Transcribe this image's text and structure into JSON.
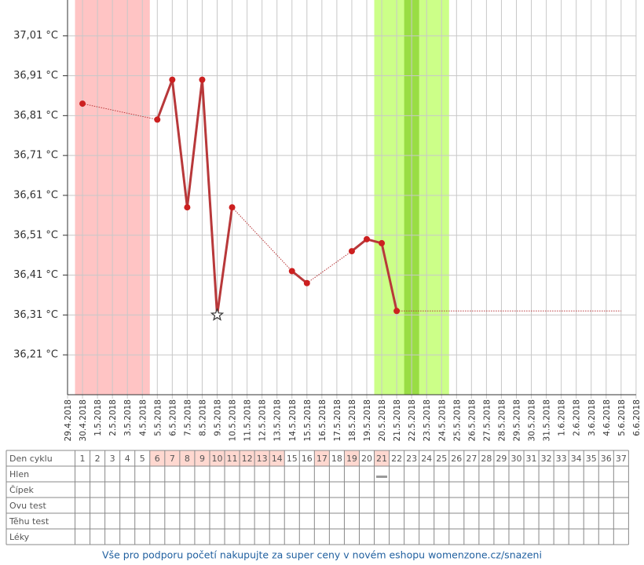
{
  "chart_data": {
    "type": "line",
    "x": [
      "29.4.2018",
      "30.4.2018",
      "1.5.2018",
      "2.5.2018",
      "3.5.2018",
      "4.5.2018",
      "5.5.2018",
      "6.5.2018",
      "7.5.2018",
      "8.5.2018",
      "9.5.2018",
      "10.5.2018",
      "11.5.2018",
      "12.5.2018",
      "13.5.2018",
      "14.5.2018",
      "15.5.2018",
      "16.5.2018",
      "17.5.2018",
      "18.5.2018",
      "19.5.2018",
      "20.5.2018",
      "21.5.2018",
      "22.5.2018",
      "23.5.2018",
      "24.5.2018",
      "25.5.2018",
      "26.5.2018",
      "27.5.2018",
      "28.5.2018",
      "29.5.2018",
      "30.5.2018",
      "31.5.2018",
      "1.6.2018",
      "2.6.2018",
      "3.6.2018",
      "4.6.2018",
      "5.6.2018",
      "6.6.2018"
    ],
    "series": [
      {
        "color": "#b8383a",
        "point_color": "#cc2020",
        "values": [
          null,
          36.84,
          null,
          null,
          null,
          null,
          36.8,
          36.9,
          36.58,
          36.9,
          36.31,
          36.58,
          null,
          null,
          null,
          36.42,
          36.39,
          null,
          null,
          36.47,
          36.5,
          36.49,
          36.32,
          null,
          null,
          null,
          null,
          null,
          null,
          null,
          null,
          null,
          null,
          null,
          null,
          null,
          null,
          null,
          null
        ]
      }
    ],
    "star_x": [
      "9.5.2018"
    ],
    "bands": [
      {
        "from": "30.4.2018",
        "to": "4.5.2018",
        "color": "#ffc4c4"
      },
      {
        "from": "20.5.2018",
        "to": "24.5.2018",
        "color": "#ccff88"
      },
      {
        "from": "22.5.2018",
        "to": "22.5.2018",
        "color": "#99dd44"
      }
    ],
    "ylim": [
      36.11,
      37.1
    ],
    "yticks": [
      {
        "value": 36.21,
        "label": "36,21 °C"
      },
      {
        "value": 36.31,
        "label": "36,31 °C"
      },
      {
        "value": 36.41,
        "label": "36,41 °C"
      },
      {
        "value": 36.51,
        "label": "36,51 °C"
      },
      {
        "value": 36.61,
        "label": "36,61 °C"
      },
      {
        "value": 36.71,
        "label": "36,71 °C"
      },
      {
        "value": 36.81,
        "label": "36,81 °C"
      },
      {
        "value": 36.91,
        "label": "36,91 °C"
      },
      {
        "value": 37.01,
        "label": "37,01 °C"
      }
    ],
    "grid": true
  },
  "table": {
    "row_labels": [
      "Den cyklu",
      "Hlen",
      "Čípek",
      "Ovu test",
      "Těhu test",
      "Léky"
    ],
    "cycle_days": [
      1,
      2,
      3,
      4,
      5,
      6,
      7,
      8,
      9,
      10,
      11,
      12,
      13,
      14,
      15,
      16,
      17,
      18,
      19,
      20,
      21,
      22,
      23,
      24,
      25,
      26,
      27,
      28,
      29,
      30,
      31,
      32,
      33,
      34,
      35,
      36,
      37
    ],
    "highlighted_days": [
      6,
      7,
      8,
      9,
      10,
      11,
      12,
      13,
      14,
      17,
      19,
      21
    ],
    "hlen_marks": [
      21
    ]
  },
  "footer": "Vše pro podporu početí nakupujte za super ceny v novém eshopu womenzone.cz/snazeni"
}
